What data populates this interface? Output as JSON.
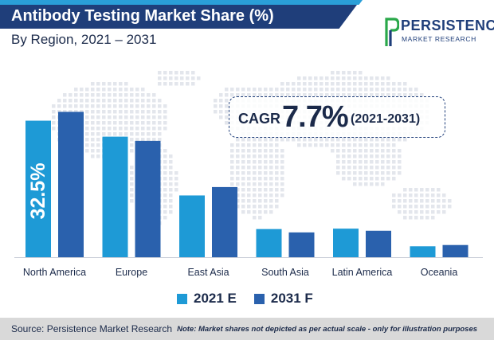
{
  "header": {
    "title": "Antibody Testing Market Share (%)",
    "subtitle": "By Region, 2021 – 2031"
  },
  "logo": {
    "name": "PERSISTENCE",
    "tagline": "MARKET RESEARCH"
  },
  "cagr": {
    "label": "CAGR",
    "value": "7.7%",
    "period": "(2021-2031)"
  },
  "colors": {
    "series_2021": "#1e9ad6",
    "series_2031": "#2a61ad",
    "title_banner": "#1f3e7a",
    "text": "#1b2a4a",
    "map_dots": "#e3e6ec"
  },
  "chart_data": {
    "type": "bar",
    "title": "Antibody Testing Market Share (%)",
    "subtitle": "By Region, 2021 – 2031",
    "categories": [
      "North America",
      "Europe",
      "East Asia",
      "South Asia",
      "Latin America",
      "Oceania"
    ],
    "series": [
      {
        "name": "2021 E",
        "values": [
          32.5,
          28.7,
          14.7,
          6.7,
          6.8,
          2.6
        ]
      },
      {
        "name": "2031 F",
        "values": [
          34.6,
          27.7,
          16.7,
          5.9,
          6.3,
          2.9
        ]
      }
    ],
    "data_labels": [
      {
        "category": "North America",
        "series": "2021 E",
        "text": "32.5%"
      }
    ],
    "xlabel": "",
    "ylabel": "",
    "ylim": [
      0,
      40
    ],
    "grid": false,
    "legend": "bottom-center"
  },
  "footer": {
    "source": "Source: Persistence Market Research",
    "note": "Note: Market shares not depicted as per actual scale - only for illustration purposes"
  }
}
